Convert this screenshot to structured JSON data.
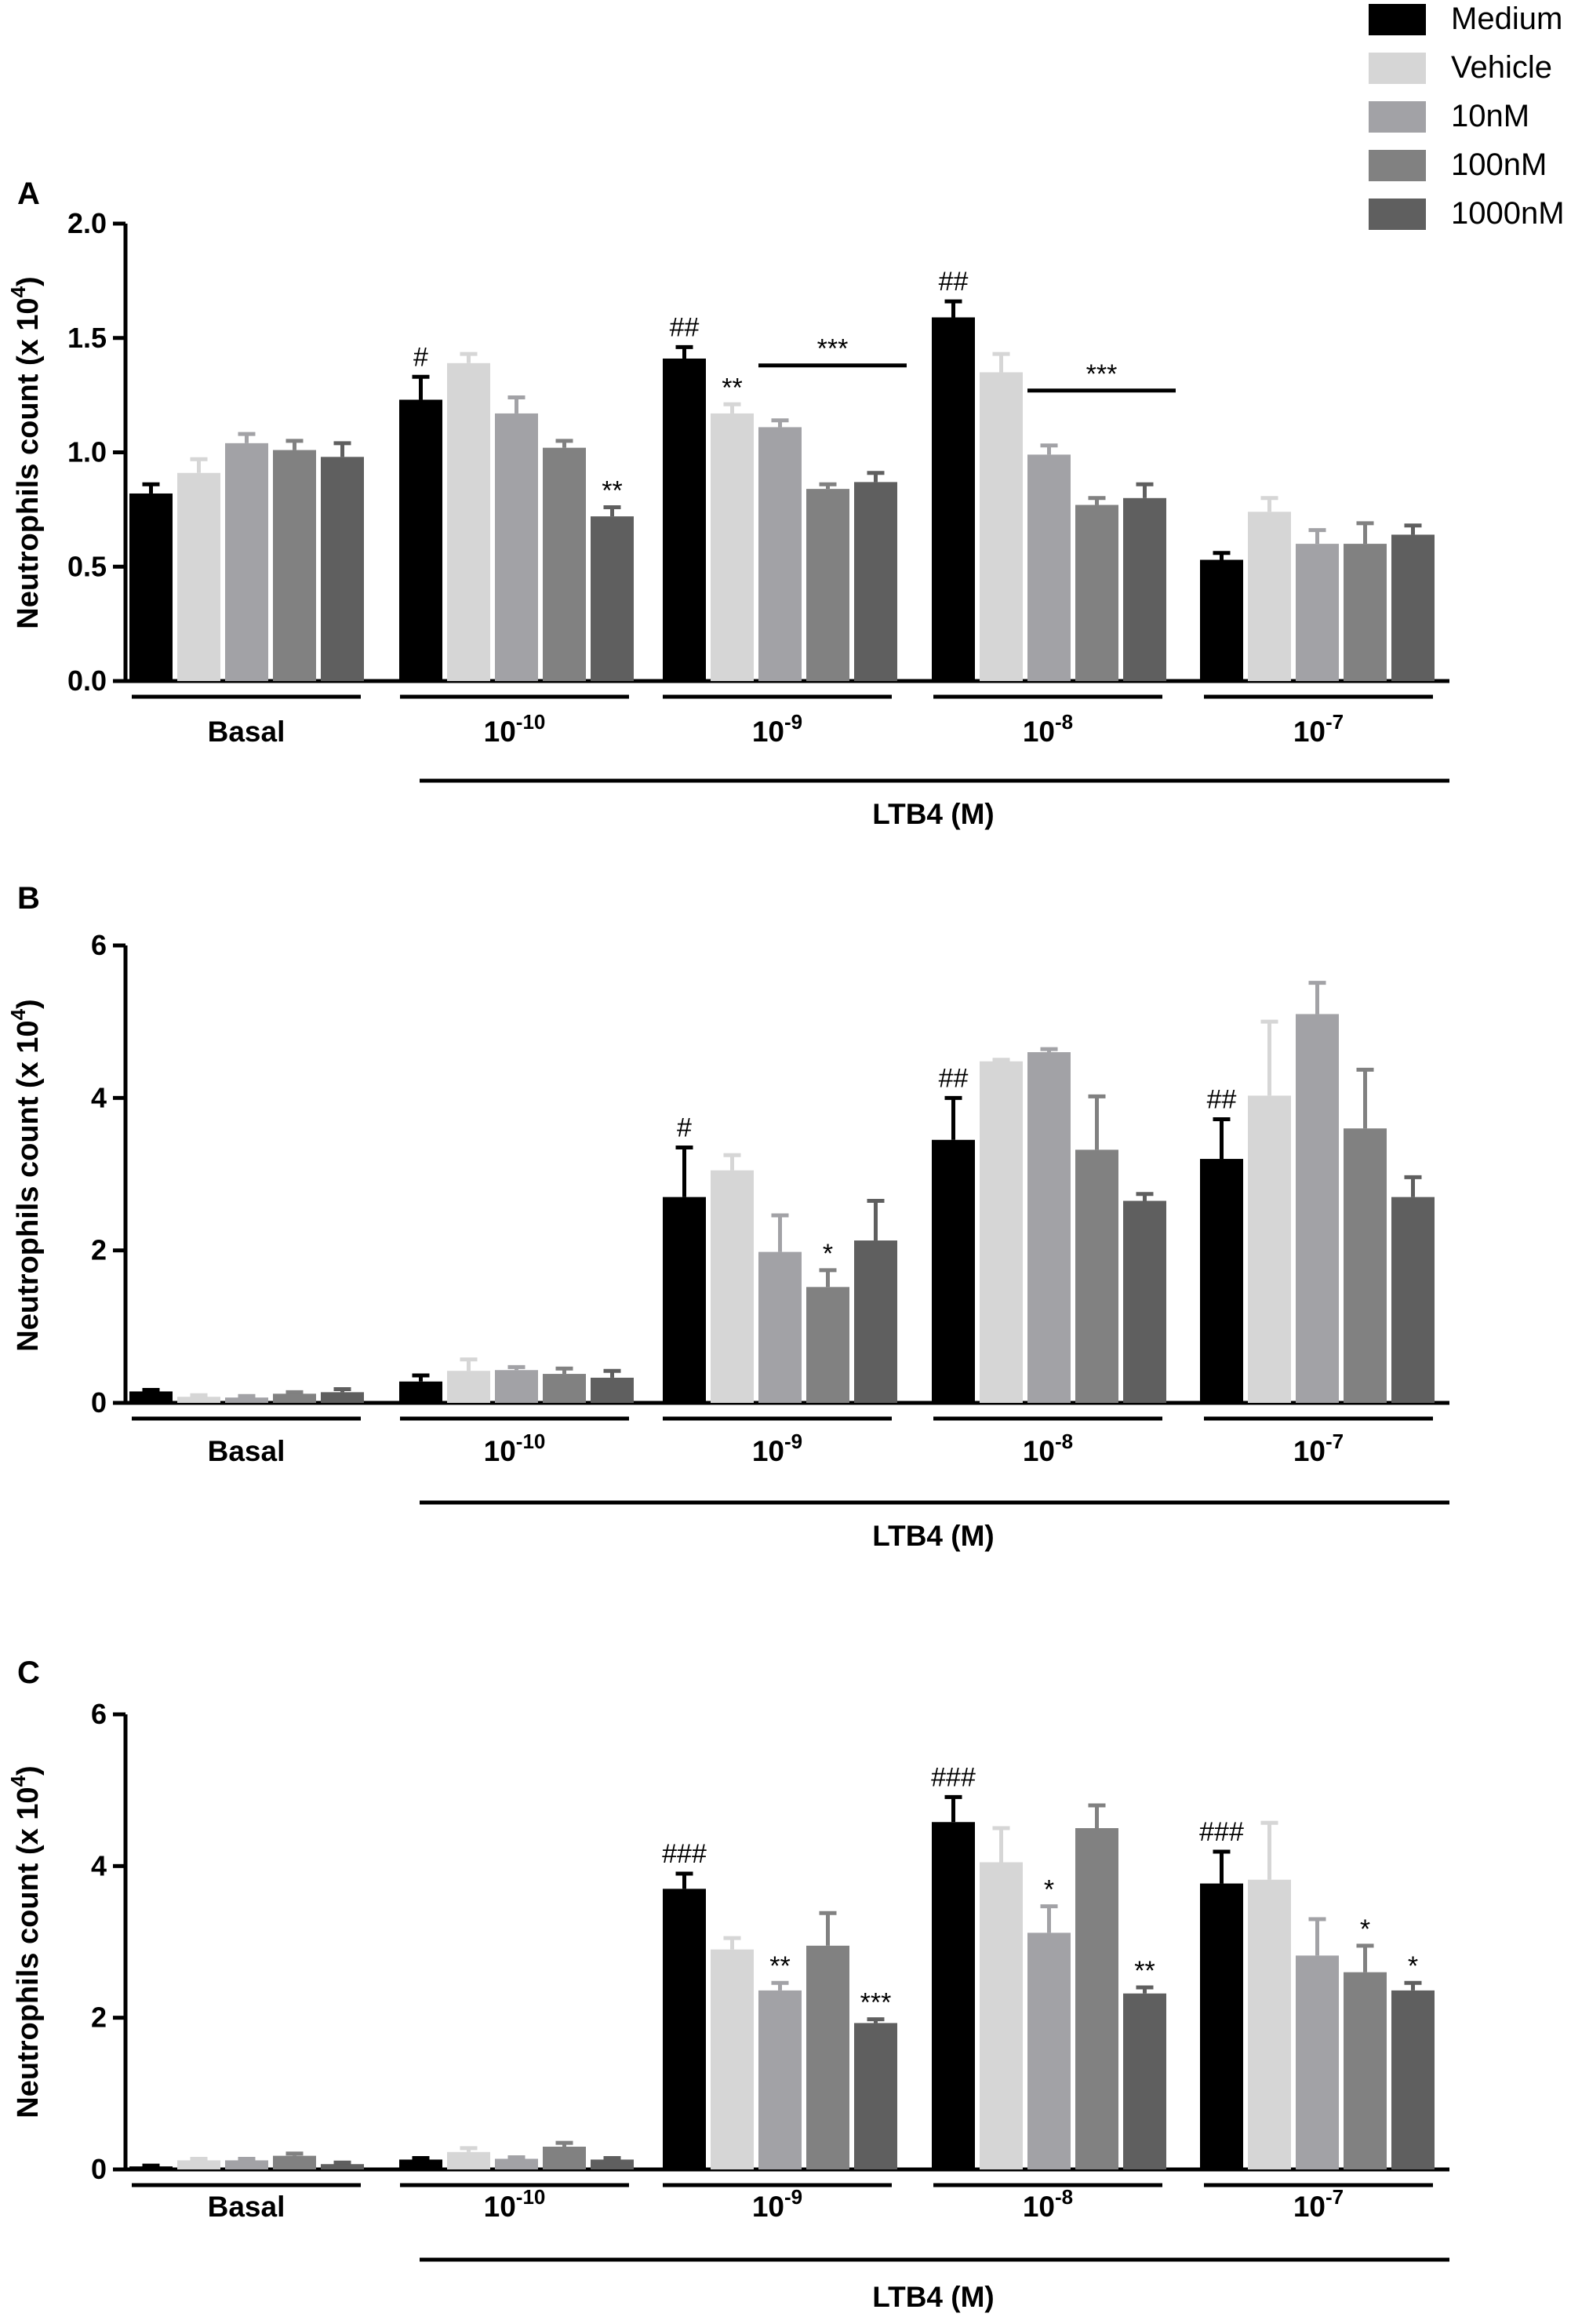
{
  "legend": {
    "entries": [
      {
        "label": "Medium",
        "color": "#000000"
      },
      {
        "label": "Vehicle",
        "color": "#d6d6d6"
      },
      {
        "label": "10nM",
        "color": "#a2a2a6"
      },
      {
        "label": "100nM",
        "color": "#818181"
      },
      {
        "label": "1000nM",
        "color": "#5f5f5f"
      }
    ]
  },
  "chart_data": [
    {
      "panel": "A",
      "type": "bar",
      "ylabel_main": "Neutrophils count (x 10",
      "ylabel_exp": "4",
      "ylabel_close": ")",
      "ylim": [
        0,
        2.0
      ],
      "yticks": [
        "0.0",
        "0.5",
        "1.0",
        "1.5",
        "2.0"
      ],
      "ytick_values": [
        0,
        0.5,
        1.0,
        1.5,
        2.0
      ],
      "xlabel": "LTB4 (M)",
      "groups": [
        {
          "base": "Basal",
          "exp": ""
        },
        {
          "base": "10",
          "exp": "-10"
        },
        {
          "base": "10",
          "exp": "-9"
        },
        {
          "base": "10",
          "exp": "-8"
        },
        {
          "base": "10",
          "exp": "-7"
        }
      ],
      "series": [
        {
          "name": "Medium",
          "values": [
            0.82,
            1.23,
            1.41,
            1.59,
            0.53
          ],
          "errors": [
            0.04,
            0.1,
            0.05,
            0.07,
            0.03
          ]
        },
        {
          "name": "Vehicle",
          "values": [
            0.91,
            1.39,
            1.17,
            1.35,
            0.74
          ],
          "errors": [
            0.06,
            0.04,
            0.04,
            0.08,
            0.06
          ]
        },
        {
          "name": "10nM",
          "values": [
            1.04,
            1.17,
            1.11,
            0.99,
            0.6
          ],
          "errors": [
            0.04,
            0.07,
            0.03,
            0.04,
            0.06
          ]
        },
        {
          "name": "100nM",
          "values": [
            1.01,
            1.02,
            0.84,
            0.77,
            0.6
          ],
          "errors": [
            0.04,
            0.03,
            0.02,
            0.03,
            0.09
          ]
        },
        {
          "name": "1000nM",
          "values": [
            0.98,
            0.72,
            0.87,
            0.8,
            0.64
          ],
          "errors": [
            0.06,
            0.04,
            0.04,
            0.06,
            0.04
          ]
        }
      ],
      "annotations": [
        {
          "group": 1,
          "series": 0,
          "text": "#"
        },
        {
          "group": 1,
          "series": 4,
          "text": "**"
        },
        {
          "group": 2,
          "series": 0,
          "text": "##"
        },
        {
          "group": 2,
          "series": 1,
          "text": "**"
        },
        {
          "group": 3,
          "series": 0,
          "text": "##"
        }
      ],
      "brackets": [
        {
          "group": 2,
          "from_series": 2,
          "to_series": 4,
          "text": "***"
        },
        {
          "group": 3,
          "from_series": 2,
          "to_series": 4,
          "text": "***"
        }
      ]
    },
    {
      "panel": "B",
      "type": "bar",
      "ylabel_main": "Neutrophils count (x 10",
      "ylabel_exp": "4",
      "ylabel_close": ")",
      "ylim": [
        0,
        6
      ],
      "yticks": [
        "0",
        "2",
        "4",
        "6"
      ],
      "ytick_values": [
        0,
        2,
        4,
        6
      ],
      "xlabel": "LTB4 (M)",
      "groups": [
        {
          "base": "Basal",
          "exp": ""
        },
        {
          "base": "10",
          "exp": "-10"
        },
        {
          "base": "10",
          "exp": "-9"
        },
        {
          "base": "10",
          "exp": "-8"
        },
        {
          "base": "10",
          "exp": "-7"
        }
      ],
      "series": [
        {
          "name": "Medium",
          "values": [
            0.15,
            0.28,
            2.7,
            3.45,
            3.2
          ],
          "errors": [
            0.02,
            0.08,
            0.65,
            0.55,
            0.52
          ]
        },
        {
          "name": "Vehicle",
          "values": [
            0.08,
            0.42,
            3.05,
            4.48,
            4.03
          ],
          "errors": [
            0.02,
            0.15,
            0.2,
            0.02,
            0.97
          ]
        },
        {
          "name": "10nM",
          "values": [
            0.07,
            0.43,
            1.98,
            4.6,
            5.1
          ],
          "errors": [
            0.02,
            0.04,
            0.48,
            0.04,
            0.41
          ]
        },
        {
          "name": "100nM",
          "values": [
            0.12,
            0.38,
            1.52,
            3.32,
            3.6
          ],
          "errors": [
            0.02,
            0.07,
            0.22,
            0.7,
            0.77
          ]
        },
        {
          "name": "1000nM",
          "values": [
            0.14,
            0.33,
            2.13,
            2.65,
            2.7
          ],
          "errors": [
            0.04,
            0.09,
            0.52,
            0.09,
            0.26
          ]
        }
      ],
      "annotations": [
        {
          "group": 2,
          "series": 0,
          "text": "#"
        },
        {
          "group": 2,
          "series": 3,
          "text": "*"
        },
        {
          "group": 3,
          "series": 0,
          "text": "##"
        },
        {
          "group": 4,
          "series": 0,
          "text": "##"
        }
      ],
      "brackets": []
    },
    {
      "panel": "C",
      "type": "bar",
      "ylabel_main": "Neutrophils count (x 10",
      "ylabel_exp": "4",
      "ylabel_close": ")",
      "ylim": [
        0,
        6
      ],
      "yticks": [
        "0",
        "2",
        "4",
        "6"
      ],
      "ytick_values": [
        0,
        2,
        4,
        6
      ],
      "xlabel": "LTB4 (M)",
      "groups": [
        {
          "base": "Basal",
          "exp": ""
        },
        {
          "base": "10",
          "exp": "-10"
        },
        {
          "base": "10",
          "exp": "-9"
        },
        {
          "base": "10",
          "exp": "-8"
        },
        {
          "base": "10",
          "exp": "-7"
        }
      ],
      "series": [
        {
          "name": "Medium",
          "values": [
            0.04,
            0.13,
            3.7,
            4.58,
            3.77
          ],
          "errors": [
            0.01,
            0.02,
            0.2,
            0.33,
            0.42
          ]
        },
        {
          "name": "Vehicle",
          "values": [
            0.12,
            0.23,
            2.9,
            4.05,
            3.82
          ],
          "errors": [
            0.02,
            0.05,
            0.15,
            0.45,
            0.75
          ]
        },
        {
          "name": "10nM",
          "values": [
            0.12,
            0.14,
            2.36,
            3.12,
            2.82
          ],
          "errors": [
            0.02,
            0.02,
            0.1,
            0.35,
            0.48
          ]
        },
        {
          "name": "100nM",
          "values": [
            0.18,
            0.3,
            2.95,
            4.5,
            2.6
          ],
          "errors": [
            0.03,
            0.05,
            0.43,
            0.3,
            0.35
          ]
        },
        {
          "name": "1000nM",
          "values": [
            0.07,
            0.13,
            1.93,
            2.32,
            2.36
          ],
          "errors": [
            0.02,
            0.02,
            0.05,
            0.08,
            0.1
          ]
        }
      ],
      "annotations": [
        {
          "group": 2,
          "series": 0,
          "text": "###"
        },
        {
          "group": 2,
          "series": 2,
          "text": "**"
        },
        {
          "group": 2,
          "series": 4,
          "text": "***"
        },
        {
          "group": 3,
          "series": 0,
          "text": "###"
        },
        {
          "group": 3,
          "series": 2,
          "text": "*"
        },
        {
          "group": 3,
          "series": 4,
          "text": "**"
        },
        {
          "group": 4,
          "series": 0,
          "text": "###"
        },
        {
          "group": 4,
          "series": 3,
          "text": "*"
        },
        {
          "group": 4,
          "series": 4,
          "text": "*"
        }
      ],
      "brackets": []
    }
  ]
}
